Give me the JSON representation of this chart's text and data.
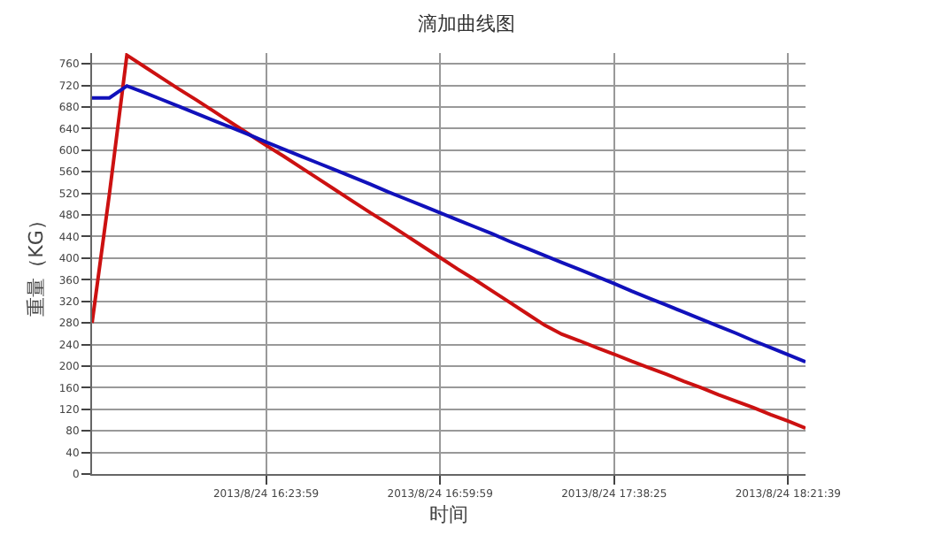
{
  "chart_data": {
    "type": "line",
    "title": "滴加曲线图",
    "xlabel": "时间",
    "ylabel": "重量（KG）",
    "categories": [
      null,
      null,
      null,
      null,
      null,
      null,
      null,
      null,
      null,
      null,
      "2013/8/24 16:23:59",
      null,
      null,
      null,
      null,
      null,
      null,
      null,
      null,
      null,
      "2013/8/24 16:59:59",
      null,
      null,
      null,
      null,
      null,
      null,
      null,
      null,
      null,
      "2013/8/24 17:38:25",
      null,
      null,
      null,
      null,
      null,
      null,
      null,
      null,
      null,
      "2013/8/24 18:21:39",
      null
    ],
    "ylim": [
      0,
      780
    ],
    "yticks": [
      0,
      40,
      80,
      120,
      160,
      200,
      240,
      280,
      320,
      360,
      400,
      440,
      480,
      520,
      560,
      600,
      640,
      680,
      720,
      760
    ],
    "grid": true,
    "marker": "none",
    "line_style": "solid",
    "series": [
      {
        "color": "#cc1111",
        "values": [
          280,
          520,
          776,
          755,
          734,
          713,
          693,
          672,
          651,
          630,
          609,
          589,
          568,
          547,
          526,
          505,
          484,
          464,
          443,
          422,
          401,
          380,
          360,
          339,
          318,
          297,
          276,
          259,
          247,
          234,
          222,
          209,
          197,
          185,
          172,
          160,
          147,
          135,
          123,
          110,
          98,
          85
        ]
      },
      {
        "color": "#1111bb",
        "values": [
          697,
          697,
          719,
          707,
          694,
          681,
          668,
          655,
          642,
          629,
          615,
          602,
          589,
          576,
          563,
          550,
          537,
          523,
          510,
          497,
          484,
          471,
          458,
          445,
          431,
          418,
          405,
          392,
          379,
          366,
          353,
          339,
          326,
          313,
          300,
          287,
          274,
          261,
          247,
          234,
          221,
          208
        ]
      }
    ]
  }
}
